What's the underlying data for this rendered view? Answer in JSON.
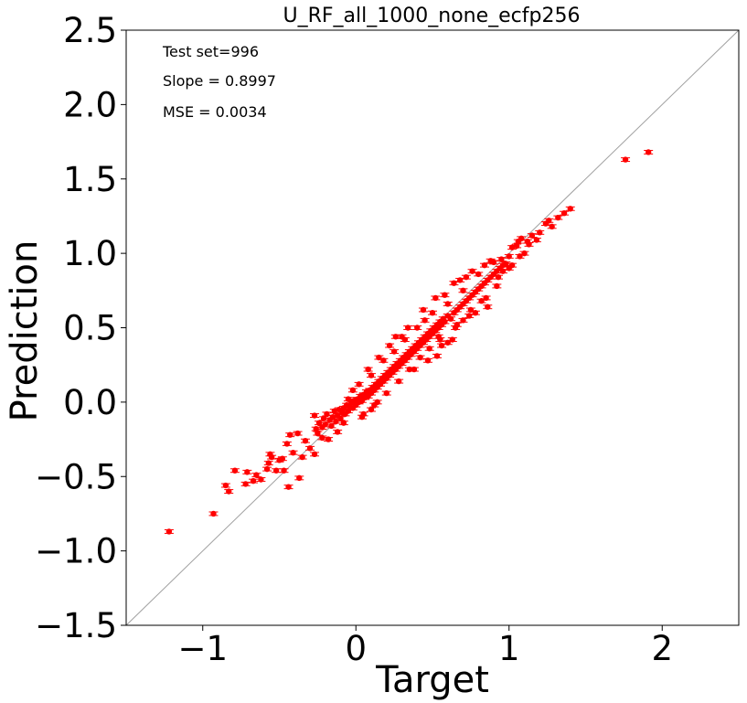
{
  "chart_data": {
    "type": "scatter",
    "title": "U_RF_all_1000_none_ecfp256",
    "xlabel": "Target",
    "ylabel": "Prediction",
    "xlim": [
      -1.5,
      2.5
    ],
    "ylim": [
      -1.5,
      2.5
    ],
    "xticks": [
      -1,
      0,
      1,
      2
    ],
    "xtick_labels": [
      "−1",
      "0",
      "1",
      "2"
    ],
    "yticks": [
      -1.5,
      -1.0,
      -0.5,
      0.0,
      0.5,
      1.0,
      1.5,
      2.0,
      2.5
    ],
    "ytick_labels": [
      "−1.5",
      "−1.0",
      "−0.5",
      "0.0",
      "0.5",
      "1.0",
      "1.5",
      "2.0",
      "2.5"
    ],
    "annotations": [
      "Test set=996",
      "Slope = 0.8997",
      "MSE = 0.0034"
    ],
    "grid": false,
    "reference_line": "y = x",
    "colors": {
      "points": "#ff0000",
      "errorbars": "#ff0000",
      "reference_line": "#a0a0a0"
    },
    "series": [
      {
        "errorbar": 0.012,
        "points": [
          [
            -1.22,
            -0.87
          ],
          [
            -0.93,
            -0.75
          ],
          [
            -0.83,
            -0.6
          ],
          [
            -0.85,
            -0.56
          ],
          [
            -0.79,
            -0.46
          ],
          [
            -0.72,
            -0.55
          ],
          [
            -0.71,
            -0.47
          ],
          [
            -0.67,
            -0.53
          ],
          [
            -0.65,
            -0.49
          ],
          [
            -0.62,
            -0.52
          ],
          [
            -0.58,
            -0.45
          ],
          [
            -0.57,
            -0.41
          ],
          [
            -0.55,
            -0.37
          ],
          [
            -0.56,
            -0.35
          ],
          [
            -0.52,
            -0.46
          ],
          [
            -0.5,
            -0.39
          ],
          [
            -0.48,
            -0.38
          ],
          [
            -0.47,
            -0.46
          ],
          [
            -0.45,
            -0.28
          ],
          [
            -0.44,
            -0.57
          ],
          [
            -0.43,
            -0.22
          ],
          [
            -0.41,
            -0.34
          ],
          [
            -0.38,
            -0.21
          ],
          [
            -0.37,
            -0.51
          ],
          [
            -0.35,
            -0.37
          ],
          [
            -0.33,
            -0.26
          ],
          [
            -0.3,
            -0.31
          ],
          [
            -0.27,
            -0.35
          ],
          [
            -0.27,
            -0.09
          ],
          [
            -0.26,
            -0.18
          ],
          [
            -0.25,
            -0.21
          ],
          [
            -0.24,
            -0.14
          ],
          [
            -0.22,
            -0.17
          ],
          [
            -0.21,
            -0.11
          ],
          [
            -0.2,
            -0.15
          ],
          [
            -0.19,
            -0.08
          ],
          [
            -0.18,
            -0.25
          ],
          [
            -0.17,
            -0.12
          ],
          [
            -0.16,
            -0.16
          ],
          [
            -0.15,
            -0.1
          ],
          [
            -0.14,
            -0.06
          ],
          [
            -0.13,
            -0.13
          ],
          [
            -0.12,
            -0.09
          ],
          [
            -0.11,
            -0.05
          ],
          [
            -0.1,
            -0.11
          ],
          [
            -0.09,
            -0.07
          ],
          [
            -0.08,
            -0.04
          ],
          [
            -0.07,
            -0.08
          ],
          [
            -0.06,
            -0.02
          ],
          [
            -0.05,
            -0.06
          ],
          [
            -0.04,
            -0.03
          ],
          [
            -0.03,
            0.0
          ],
          [
            -0.02,
            -0.04
          ],
          [
            -0.01,
            0.01
          ],
          [
            0.0,
            -0.02
          ],
          [
            0.01,
            0.02
          ],
          [
            0.02,
            0.0
          ],
          [
            0.03,
            0.04
          ],
          [
            0.04,
            0.01
          ],
          [
            0.05,
            0.05
          ],
          [
            0.06,
            0.03
          ],
          [
            0.07,
            0.07
          ],
          [
            0.08,
            0.04
          ],
          [
            0.09,
            0.08
          ],
          [
            0.1,
            0.06
          ],
          [
            0.11,
            0.1
          ],
          [
            0.12,
            0.08
          ],
          [
            0.13,
            0.12
          ],
          [
            0.14,
            0.1
          ],
          [
            0.15,
            0.14
          ],
          [
            0.16,
            0.12
          ],
          [
            0.17,
            0.16
          ],
          [
            0.18,
            0.14
          ],
          [
            0.19,
            0.18
          ],
          [
            0.2,
            0.16
          ],
          [
            0.21,
            0.2
          ],
          [
            0.22,
            0.18
          ],
          [
            0.23,
            0.22
          ],
          [
            0.24,
            0.2
          ],
          [
            0.25,
            0.24
          ],
          [
            0.26,
            0.22
          ],
          [
            0.27,
            0.26
          ],
          [
            0.28,
            0.24
          ],
          [
            0.29,
            0.28
          ],
          [
            0.3,
            0.26
          ],
          [
            0.31,
            0.3
          ],
          [
            0.32,
            0.28
          ],
          [
            0.33,
            0.32
          ],
          [
            0.34,
            0.3
          ],
          [
            0.35,
            0.34
          ],
          [
            0.36,
            0.32
          ],
          [
            0.37,
            0.36
          ],
          [
            0.38,
            0.34
          ],
          [
            0.39,
            0.38
          ],
          [
            0.4,
            0.36
          ],
          [
            0.41,
            0.4
          ],
          [
            0.42,
            0.38
          ],
          [
            0.43,
            0.42
          ],
          [
            0.44,
            0.4
          ],
          [
            0.45,
            0.44
          ],
          [
            0.46,
            0.42
          ],
          [
            0.47,
            0.46
          ],
          [
            0.48,
            0.44
          ],
          [
            0.49,
            0.48
          ],
          [
            0.5,
            0.46
          ],
          [
            0.51,
            0.5
          ],
          [
            0.52,
            0.48
          ],
          [
            0.53,
            0.52
          ],
          [
            0.54,
            0.5
          ],
          [
            0.55,
            0.54
          ],
          [
            0.56,
            0.52
          ],
          [
            0.57,
            0.56
          ],
          [
            0.58,
            0.54
          ],
          [
            0.6,
            0.58
          ],
          [
            0.62,
            0.56
          ],
          [
            0.64,
            0.6
          ],
          [
            0.66,
            0.62
          ],
          [
            0.68,
            0.64
          ],
          [
            0.7,
            0.66
          ],
          [
            0.72,
            0.68
          ],
          [
            0.74,
            0.7
          ],
          [
            0.76,
            0.72
          ],
          [
            0.78,
            0.74
          ],
          [
            0.8,
            0.76
          ],
          [
            0.82,
            0.78
          ],
          [
            0.84,
            0.8
          ],
          [
            0.86,
            0.82
          ],
          [
            0.88,
            0.84
          ],
          [
            0.9,
            0.86
          ],
          [
            0.92,
            0.88
          ],
          [
            0.94,
            0.9
          ],
          [
            0.96,
            0.92
          ],
          [
            -0.02,
            0.08
          ],
          [
            0.05,
            -0.08
          ],
          [
            0.1,
            0.18
          ],
          [
            0.12,
            -0.02
          ],
          [
            0.18,
            0.28
          ],
          [
            0.2,
            0.06
          ],
          [
            0.25,
            0.34
          ],
          [
            0.28,
            0.14
          ],
          [
            0.32,
            0.42
          ],
          [
            0.35,
            0.22
          ],
          [
            0.4,
            0.5
          ],
          [
            0.42,
            0.3
          ],
          [
            0.45,
            0.55
          ],
          [
            0.48,
            0.36
          ],
          [
            0.5,
            0.6
          ],
          [
            0.55,
            0.42
          ],
          [
            0.6,
            0.66
          ],
          [
            0.65,
            0.5
          ],
          [
            0.7,
            0.75
          ],
          [
            0.75,
            0.62
          ],
          [
            0.8,
            0.86
          ],
          [
            0.85,
            0.7
          ],
          [
            0.88,
            0.95
          ],
          [
            0.92,
            0.78
          ],
          [
            0.3,
            0.44
          ],
          [
            0.34,
            0.5
          ],
          [
            0.44,
            0.62
          ],
          [
            0.52,
            0.7
          ],
          [
            0.58,
            0.72
          ],
          [
            0.64,
            0.8
          ],
          [
            0.68,
            0.82
          ],
          [
            0.72,
            0.84
          ],
          [
            0.76,
            0.88
          ],
          [
            0.84,
            0.92
          ],
          [
            0.9,
            0.94
          ],
          [
            0.95,
            0.96
          ],
          [
            0.98,
            0.93
          ],
          [
            1.0,
            0.9
          ],
          [
            0.96,
            0.88
          ],
          [
            0.93,
            0.84
          ],
          [
            1.02,
            0.92
          ],
          [
            0.82,
            0.68
          ],
          [
            0.74,
            0.58
          ],
          [
            0.66,
            0.52
          ],
          [
            0.56,
            0.38
          ],
          [
            0.53,
            0.31
          ],
          [
            0.47,
            0.28
          ],
          [
            0.38,
            0.22
          ],
          [
            0.63,
            0.42
          ],
          [
            0.6,
            0.4
          ],
          [
            0.78,
            0.6
          ],
          [
            0.86,
            0.64
          ],
          [
            0.7,
            0.55
          ],
          [
            0.54,
            0.44
          ],
          [
            0.15,
            0.3
          ],
          [
            0.08,
            0.22
          ],
          [
            0.02,
            0.12
          ],
          [
            -0.05,
            0.02
          ],
          [
            0.22,
            0.38
          ],
          [
            0.26,
            0.44
          ],
          [
            0.1,
            -0.05
          ],
          [
            0.14,
            0.0
          ],
          [
            0.04,
            -0.1
          ],
          [
            -0.08,
            -0.14
          ],
          [
            -0.12,
            -0.2
          ],
          [
            -0.22,
            -0.24
          ],
          [
            1.05,
            1.05
          ],
          [
            1.08,
            1.1
          ],
          [
            1.1,
            1.0
          ],
          [
            1.12,
            1.08
          ],
          [
            1.15,
            1.12
          ],
          [
            1.18,
            1.09
          ],
          [
            1.07,
            0.98
          ],
          [
            1.06,
            1.08
          ],
          [
            1.2,
            1.14
          ],
          [
            1.24,
            1.2
          ],
          [
            1.28,
            1.18
          ],
          [
            1.32,
            1.24
          ],
          [
            1.36,
            1.27
          ],
          [
            1.4,
            1.3
          ],
          [
            1.0,
            0.98
          ],
          [
            1.02,
            1.04
          ],
          [
            1.13,
            1.06
          ],
          [
            1.26,
            1.22
          ],
          [
            1.76,
            1.63
          ],
          [
            1.91,
            1.68
          ]
        ]
      }
    ]
  }
}
